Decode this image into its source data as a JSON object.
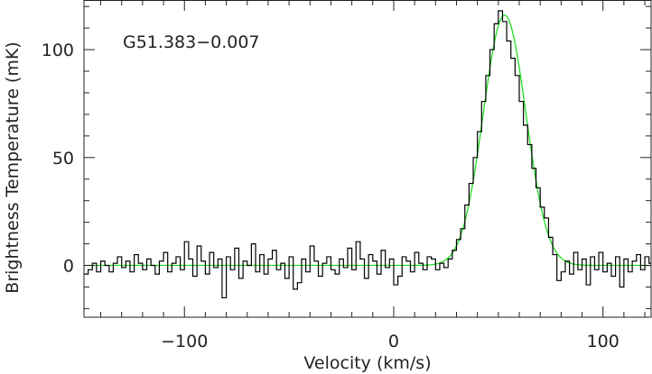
{
  "chart_data": {
    "type": "line",
    "title": "",
    "annotation": "G51.383−0.007",
    "xlabel": "Velocity (km/s)",
    "ylabel": "Brightness Temperature (mK)",
    "xlim": [
      -148,
      123
    ],
    "ylim": [
      -24,
      123
    ],
    "x_ticks": [
      {
        "value": -100,
        "label": "−100"
      },
      {
        "value": 0,
        "label": "0"
      },
      {
        "value": 100,
        "label": "100"
      }
    ],
    "y_ticks": [
      {
        "value": 0,
        "label": "0"
      },
      {
        "value": 50,
        "label": "50"
      },
      {
        "value": 100,
        "label": "100"
      }
    ],
    "x_minor_step": 10,
    "y_minor_step": 10,
    "grid": false,
    "series": [
      {
        "style": "step",
        "color": "#000000",
        "x": [
          -148,
          -146,
          -144,
          -142,
          -140,
          -138,
          -136,
          -134,
          -132,
          -130,
          -128,
          -126,
          -124,
          -122,
          -120,
          -118,
          -116,
          -114,
          -112,
          -110,
          -108,
          -106,
          -104,
          -102,
          -100,
          -98,
          -96,
          -94,
          -92,
          -90,
          -88,
          -86,
          -84,
          -82,
          -80,
          -78,
          -76,
          -74,
          -72,
          -70,
          -68,
          -66,
          -64,
          -62,
          -60,
          -58,
          -56,
          -54,
          -52,
          -50,
          -48,
          -46,
          -44,
          -42,
          -40,
          -38,
          -36,
          -34,
          -32,
          -30,
          -28,
          -26,
          -24,
          -22,
          -20,
          -18,
          -16,
          -14,
          -12,
          -10,
          -8,
          -6,
          -4,
          -2,
          0,
          2,
          4,
          6,
          8,
          10,
          12,
          14,
          16,
          18,
          20,
          22,
          24,
          26,
          28,
          30,
          32,
          34,
          36,
          38,
          40,
          42,
          44,
          46,
          48,
          50,
          52,
          54,
          56,
          58,
          60,
          62,
          64,
          66,
          68,
          70,
          72,
          74,
          76,
          78,
          80,
          82,
          84,
          86,
          88,
          90,
          92,
          94,
          96,
          98,
          100,
          102,
          104,
          106,
          108,
          110,
          112,
          114,
          116,
          118,
          120,
          122
        ],
        "y": [
          -4,
          -2,
          1,
          -3,
          2,
          0,
          -3,
          1,
          4,
          -1,
          2,
          -3,
          5,
          1,
          -2,
          3,
          0,
          -4,
          2,
          6,
          -3,
          1,
          4,
          -2,
          11,
          3,
          -5,
          9,
          2,
          -4,
          6,
          -1,
          3,
          -15,
          4,
          -2,
          8,
          -6,
          2,
          0,
          10,
          -3,
          5,
          -4,
          3,
          7,
          -2,
          1,
          -6,
          4,
          -11,
          -8,
          3,
          -3,
          9,
          2,
          -5,
          1,
          4,
          -2,
          -4,
          3,
          -1,
          8,
          -2,
          11,
          3,
          -6,
          5,
          2,
          -4,
          7,
          -1,
          3,
          -9,
          -5,
          4,
          2,
          -3,
          6,
          1,
          -2,
          4,
          3,
          -2,
          1,
          -1,
          3,
          7,
          12,
          17,
          28,
          38,
          50,
          62,
          76,
          88,
          100,
          112,
          118,
          113,
          104,
          96,
          88,
          76,
          65,
          56,
          45,
          36,
          27,
          22,
          13,
          5,
          -7,
          -3,
          2,
          -4,
          6,
          -2,
          3,
          -9,
          4,
          -2,
          6,
          -3,
          1,
          -5,
          4,
          -10,
          3,
          -3,
          2,
          5,
          -2,
          4,
          1
        ]
      },
      {
        "style": "smooth",
        "color": "#22dd22",
        "gaussian": {
          "amplitude": 116,
          "center": 53,
          "fwhm": 24
        }
      }
    ]
  }
}
